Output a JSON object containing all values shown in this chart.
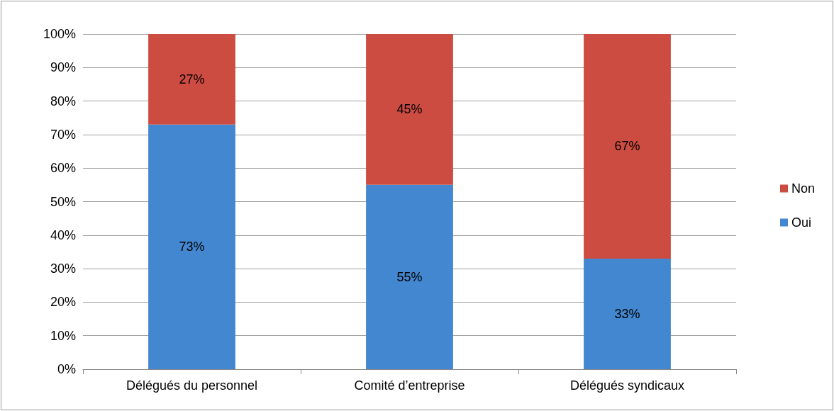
{
  "chart_data": {
    "type": "bar",
    "stacked": true,
    "categories": [
      "Délégués du personnel",
      "Comité d’entreprise",
      "Délégués syndicaux"
    ],
    "series": [
      {
        "name": "Oui",
        "color": "#4287cf",
        "values": [
          73,
          55,
          33
        ],
        "value_labels": [
          "73%",
          "55%",
          "33%"
        ]
      },
      {
        "name": "Non",
        "color": "#cd4c41",
        "values": [
          27,
          45,
          67
        ],
        "value_labels": [
          "27%",
          "45%",
          "67%"
        ]
      }
    ],
    "ylim": [
      0,
      100
    ],
    "yticks": [
      {
        "value": 0,
        "label": "0%"
      },
      {
        "value": 10,
        "label": "10%"
      },
      {
        "value": 20,
        "label": "20%"
      },
      {
        "value": 30,
        "label": "30%"
      },
      {
        "value": 40,
        "label": "40%"
      },
      {
        "value": 50,
        "label": "50%"
      },
      {
        "value": 60,
        "label": "60%"
      },
      {
        "value": 70,
        "label": "70%"
      },
      {
        "value": 80,
        "label": "80%"
      },
      {
        "value": 90,
        "label": "90%"
      },
      {
        "value": 100,
        "label": "100%"
      }
    ],
    "grid": "y",
    "legend": "right"
  }
}
